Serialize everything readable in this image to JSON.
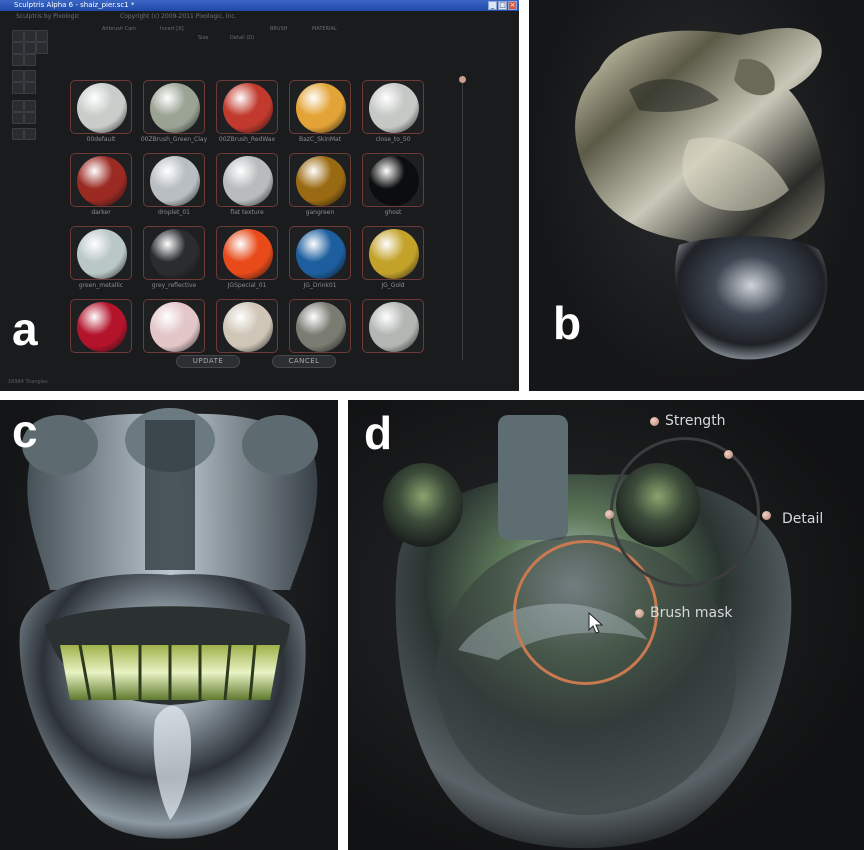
{
  "panel_labels": {
    "a": "a",
    "b": "b",
    "c": "c",
    "d": "d"
  },
  "app": {
    "window_title": "Sculptris Alpha 6 - shaiz_pier.sc1 *",
    "title_buttons": [
      "_",
      "□",
      "×"
    ],
    "header_left": "Sculptris by Pixologic",
    "header_right": "Copyright (c) 2009-2011 Pixologic, Inc.",
    "toolbar": {
      "airbrush": "Airbrush Cam",
      "invert": "Invert [X]",
      "size": "Size",
      "detail": "Detail (D)",
      "brush": "BRUSH",
      "material": "MATERIAL"
    },
    "materials": [
      {
        "label": "00default",
        "color": "#c8cdc9"
      },
      {
        "label": "00ZBrush_Green_Clay",
        "color": "#9aa394"
      },
      {
        "label": "00ZBrush_RedWax",
        "color": "#c23a2e"
      },
      {
        "label": "BazC_SkinMat",
        "color": "#e3a336"
      },
      {
        "label": "close_to_50",
        "color": "#c5c8c5"
      },
      {
        "label": "darker",
        "color": "#9a2a22"
      },
      {
        "label": "droplet_01",
        "color": "#b9bec2"
      },
      {
        "label": "flat texture",
        "color": "#b8bcbe"
      },
      {
        "label": "gangreen",
        "color": "#9a6a12"
      },
      {
        "label": "ghost",
        "color": "#0c0d0e"
      },
      {
        "label": "green_metallic",
        "color": "#b9c7c6"
      },
      {
        "label": "grey_reflective",
        "color": "#2a2c2e"
      },
      {
        "label": "JGSpecial_01",
        "color": "#e84a1a"
      },
      {
        "label": "JG_Drink01",
        "color": "#1d5e9e"
      },
      {
        "label": "JG_Gold",
        "color": "#c3a22a"
      },
      {
        "label": "",
        "color": "#b3142c"
      },
      {
        "label": "",
        "color": "#e3c6c8"
      },
      {
        "label": "",
        "color": "#cfc6b7"
      },
      {
        "label": "",
        "color": "#7a7c72"
      },
      {
        "label": "",
        "color": "#b2b7b3"
      }
    ],
    "update_button": "UPDATE",
    "cancel_button": "CANCEL",
    "status": "16984 Triangles"
  },
  "brush_overlay": {
    "strength": "Strength",
    "detail": "Detail",
    "brush_mask": "Brush mask",
    "accent_color": "#c97a50"
  }
}
